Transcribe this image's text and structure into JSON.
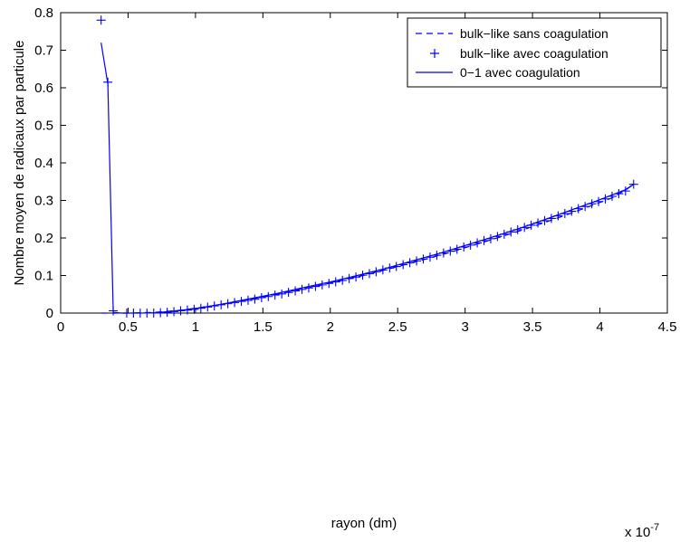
{
  "chart_data": {
    "type": "line",
    "xlabel": "rayon (dm)",
    "ylabel": "Nombre moyen de radicaux par particule",
    "x_exponent_label": "x 10",
    "x_exponent_power": "-7",
    "xlim": [
      0,
      4.5
    ],
    "ylim": [
      0,
      0.8
    ],
    "x_ticks": [
      "0",
      "0.5",
      "1",
      "1.5",
      "2",
      "2.5",
      "3",
      "3.5",
      "4",
      "4.5"
    ],
    "y_ticks": [
      "0",
      "0.1",
      "0.2",
      "0.3",
      "0.4",
      "0.5",
      "0.6",
      "0.7",
      "0.8"
    ],
    "grid": false,
    "legend_position": "top-right",
    "series": [
      {
        "name": "bulk−like sans coagulation",
        "style": "dashed",
        "color": "#0000ff",
        "x": [
          0.3,
          0.5,
          0.7,
          0.9,
          1.1,
          1.3,
          1.5,
          1.7,
          1.9,
          2.1,
          2.3,
          2.5,
          2.7,
          2.9,
          3.1,
          3.3,
          3.5,
          3.7,
          3.9,
          4.1,
          4.25
        ],
        "y": [
          0.0,
          0.0,
          0.002,
          0.008,
          0.018,
          0.03,
          0.043,
          0.057,
          0.072,
          0.088,
          0.105,
          0.124,
          0.143,
          0.163,
          0.185,
          0.207,
          0.23,
          0.255,
          0.281,
          0.308,
          0.343
        ]
      },
      {
        "name": "bulk−like avec coagulation",
        "style": "plus",
        "color": "#0000ff",
        "x": [
          0.3,
          0.35,
          0.39,
          0.49,
          0.54,
          0.59,
          0.64,
          0.69,
          0.74,
          0.79,
          0.84,
          0.89,
          0.94,
          0.99,
          1.04,
          1.09,
          1.14,
          1.19,
          1.24,
          1.29,
          1.34,
          1.39,
          1.44,
          1.49,
          1.54,
          1.59,
          1.64,
          1.69,
          1.74,
          1.79,
          1.84,
          1.89,
          1.94,
          1.99,
          2.04,
          2.09,
          2.14,
          2.19,
          2.24,
          2.29,
          2.34,
          2.39,
          2.44,
          2.49,
          2.54,
          2.59,
          2.64,
          2.69,
          2.74,
          2.79,
          2.84,
          2.89,
          2.94,
          2.99,
          3.04,
          3.09,
          3.14,
          3.19,
          3.24,
          3.29,
          3.34,
          3.39,
          3.44,
          3.49,
          3.54,
          3.59,
          3.64,
          3.69,
          3.74,
          3.79,
          3.84,
          3.89,
          3.94,
          3.99,
          4.04,
          4.09,
          4.14,
          4.19,
          4.25
        ],
        "y": [
          0.78,
          0.615,
          0.006,
          0.0,
          0.0,
          0.0,
          0.0,
          0.0,
          0.001,
          0.002,
          0.004,
          0.006,
          0.008,
          0.01,
          0.013,
          0.016,
          0.019,
          0.022,
          0.025,
          0.028,
          0.031,
          0.034,
          0.037,
          0.041,
          0.044,
          0.048,
          0.051,
          0.055,
          0.059,
          0.063,
          0.067,
          0.071,
          0.075,
          0.079,
          0.083,
          0.087,
          0.092,
          0.096,
          0.101,
          0.105,
          0.11,
          0.115,
          0.12,
          0.124,
          0.129,
          0.134,
          0.139,
          0.144,
          0.149,
          0.154,
          0.16,
          0.165,
          0.17,
          0.176,
          0.181,
          0.187,
          0.193,
          0.198,
          0.204,
          0.21,
          0.216,
          0.222,
          0.228,
          0.234,
          0.24,
          0.246,
          0.252,
          0.259,
          0.265,
          0.271,
          0.278,
          0.284,
          0.291,
          0.297,
          0.304,
          0.311,
          0.318,
          0.325,
          0.343
        ]
      },
      {
        "name": "0−1 avec coagulation",
        "style": "solid",
        "color": "#0000ff",
        "x": [
          0.3,
          0.35,
          0.39,
          0.45,
          0.5,
          0.6,
          0.7,
          0.8,
          0.9,
          1.0,
          1.2,
          1.4,
          1.6,
          1.8,
          2.0,
          2.2,
          2.4,
          2.6,
          2.8,
          3.0,
          3.2,
          3.4,
          3.6,
          3.8,
          4.0,
          4.2,
          4.25
        ],
        "y": [
          0.72,
          0.61,
          0.002,
          0.0,
          0.0,
          0.0,
          0.001,
          0.004,
          0.008,
          0.012,
          0.024,
          0.038,
          0.052,
          0.068,
          0.083,
          0.1,
          0.118,
          0.138,
          0.158,
          0.18,
          0.202,
          0.225,
          0.25,
          0.276,
          0.302,
          0.33,
          0.343
        ]
      }
    ]
  }
}
